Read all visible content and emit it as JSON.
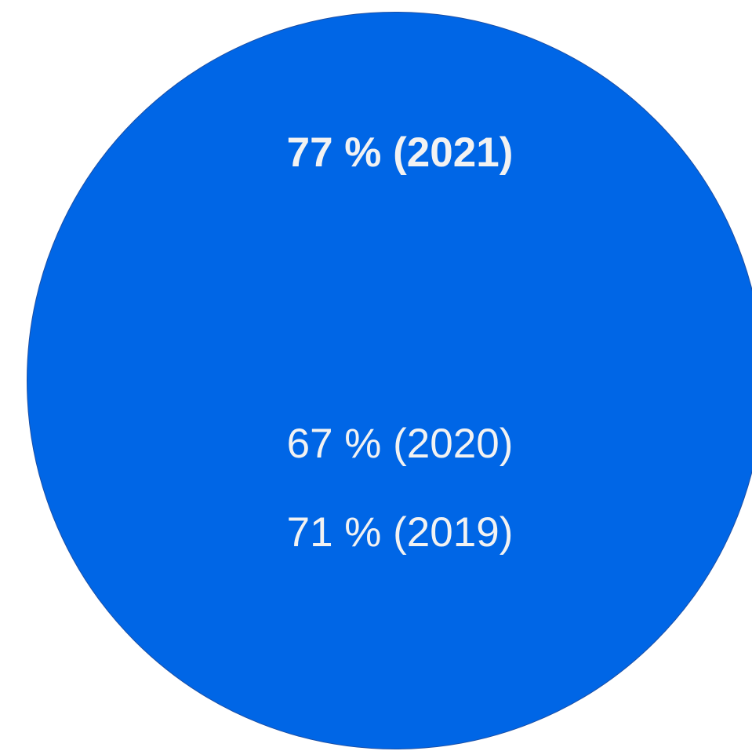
{
  "colors": {
    "circle_fill": "#0066e6",
    "circle_border": "#1b4fa6",
    "text": "#f2f2f2",
    "background": "#ffffff"
  },
  "stats": [
    {
      "text": "77 % (2021)",
      "emphasis": "bold"
    },
    {
      "text": "67 % (2020)",
      "emphasis": "normal"
    },
    {
      "text": "71 % (2019)",
      "emphasis": "normal"
    }
  ]
}
